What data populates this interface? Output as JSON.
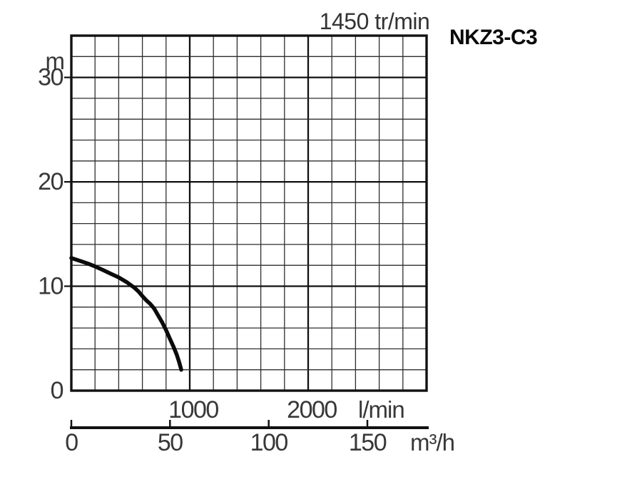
{
  "page": {
    "background": "#ffffff"
  },
  "chart_data": {
    "type": "line",
    "title": "1450 tr/min",
    "model": "NKZ3-C3",
    "grid": true,
    "legend": false,
    "y_axis": {
      "label": "m",
      "min": 0,
      "max": 34,
      "labeled_ticks": [
        0,
        10,
        20,
        30
      ],
      "grid_step": 2
    },
    "x_axis_primary": {
      "label": "l/min",
      "min": 0,
      "max": 3000,
      "labeled_ticks": [
        1000,
        2000
      ],
      "grid_step": 200
    },
    "x_axis_secondary": {
      "label": "m³/h",
      "min": 0,
      "max": 180,
      "labeled_ticks": [
        0,
        50,
        100,
        150
      ]
    },
    "series": [
      {
        "name": "NKZ3-C3",
        "x_unit": "m³/h",
        "y_unit": "m",
        "points": [
          [
            0,
            12.7
          ],
          [
            4,
            12.45
          ],
          [
            8,
            12.2
          ],
          [
            12,
            11.9
          ],
          [
            16,
            11.55
          ],
          [
            20,
            11.2
          ],
          [
            24,
            10.85
          ],
          [
            28,
            10.4
          ],
          [
            32,
            9.85
          ],
          [
            34,
            9.5
          ],
          [
            36,
            9.05
          ],
          [
            38,
            8.65
          ],
          [
            40,
            8.3
          ],
          [
            42,
            7.85
          ],
          [
            44,
            7.2
          ],
          [
            46,
            6.55
          ],
          [
            48,
            5.8
          ],
          [
            50,
            4.95
          ],
          [
            52,
            4.1
          ],
          [
            53.5,
            3.4
          ],
          [
            54.7,
            2.7
          ],
          [
            55.7,
            2.0
          ]
        ]
      }
    ],
    "colors": {
      "curve": "#0b0b0b",
      "grid_minor": "#2e2e2e",
      "grid_major": "#101010",
      "border": "#111111",
      "text": "#383838",
      "model_text": "#0a0a0a"
    }
  }
}
